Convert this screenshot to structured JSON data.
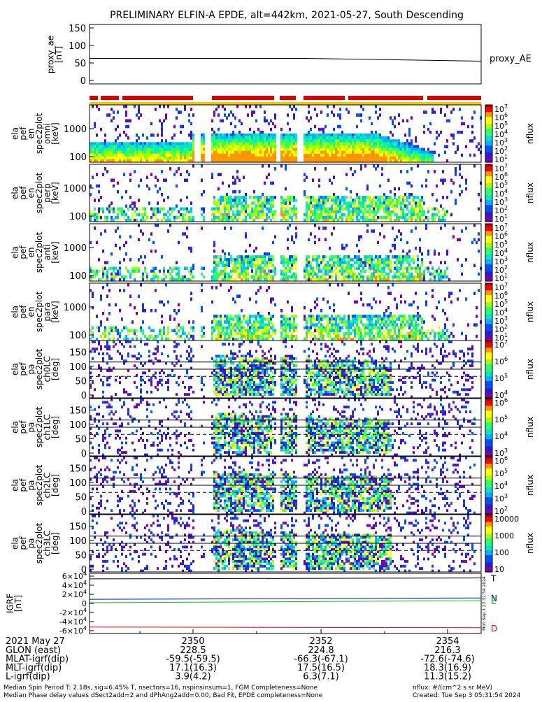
{
  "title": "PRELIMINARY ELFIN-A EPDE, alt=442km, 2021-05-27, South Descending",
  "colors": {
    "jet": [
      "#7a00b4",
      "#2d1ad2",
      "#0050ff",
      "#00b4ff",
      "#00e6c8",
      "#28ff6e",
      "#a0ff00",
      "#ffff00",
      "#ff9600",
      "#ff0000",
      "#b40000"
    ],
    "coverage_bar": "#e00000",
    "yellow_bar": "#f0c800",
    "grf_t": "#000000",
    "grf_n": "#0000ff",
    "grf_e": "#00cc00",
    "grf_d": "#ff0000"
  },
  "chart_data": [
    {
      "type": "line",
      "ylabel": [
        "proxy_ae",
        "[nT]"
      ],
      "yticks": [
        "150",
        "100",
        "50",
        "0"
      ],
      "ylim": [
        0,
        150
      ],
      "series": [
        {
          "name": "proxy_AE",
          "x": [
            0,
            0.55,
            1.0
          ],
          "values": [
            63,
            63,
            55
          ]
        }
      ]
    },
    {
      "type": "heatmap",
      "panels": [
        {
          "ylabel": [
            "ela",
            "pef",
            "en",
            "spec2plot",
            "omni",
            "[keV]"
          ],
          "yticks": [
            "1000",
            "100"
          ],
          "cbar_ticks": [
            "10^7",
            "10^6",
            "10^5",
            "10^4",
            "10^3",
            "10^2",
            "10^1"
          ],
          "cbar_label": "nflux"
        },
        {
          "ylabel": [
            "ela",
            "pef",
            "en",
            "spec2plot",
            "perp",
            "[keV]"
          ],
          "yticks": [
            "1000",
            "100"
          ],
          "cbar_ticks": [
            "10^7",
            "10^6",
            "10^5",
            "10^4",
            "10^3",
            "10^2",
            "10^1"
          ],
          "cbar_label": "nflux"
        },
        {
          "ylabel": [
            "ela",
            "pef",
            "en",
            "spec2plot",
            "anti",
            "[keV]"
          ],
          "yticks": [
            "1000",
            "100"
          ],
          "cbar_ticks": [
            "10^7",
            "10^6",
            "10^5",
            "10^4",
            "10^3",
            "10^2",
            "10^1"
          ],
          "cbar_label": "nflux"
        },
        {
          "ylabel": [
            "ela",
            "pef",
            "en",
            "spec2plot",
            "para",
            "[keV]"
          ],
          "yticks": [
            "1000",
            "100"
          ],
          "cbar_ticks": [
            "10^7",
            "10^6",
            "10^5",
            "10^4",
            "10^3",
            "10^2",
            "10^1"
          ],
          "cbar_label": "nflux"
        },
        {
          "ylabel": [
            "ela",
            "pef",
            "pa",
            "spec2plot",
            "ch0LC",
            "[deg]"
          ],
          "yticks": [
            "150",
            "100",
            "50",
            "0"
          ],
          "cbar_ticks": [
            "10^7",
            "10^6",
            "10^5",
            "10^4"
          ],
          "cbar_label": "nflux"
        },
        {
          "ylabel": [
            "ela",
            "pef",
            "pa",
            "spec2plot",
            "ch1LC",
            "[deg]"
          ],
          "yticks": [
            "150",
            "100",
            "50",
            "0"
          ],
          "cbar_ticks": [
            "10^6",
            "10^5",
            "10^4",
            "10^3"
          ],
          "cbar_label": "nflux"
        },
        {
          "ylabel": [
            "ela",
            "pef",
            "pa",
            "spec2plot",
            "ch2LC",
            "[deg]"
          ],
          "yticks": [
            "150",
            "100",
            "50",
            "0"
          ],
          "cbar_ticks": [
            "10^6",
            "10^5",
            "10^4",
            "10^3",
            "10^2"
          ],
          "cbar_label": "nflux"
        },
        {
          "ylabel": [
            "ela",
            "pef",
            "pa",
            "spec2plot",
            "ch3LC",
            "[deg]"
          ],
          "yticks": [
            "150",
            "100",
            "50",
            "0"
          ],
          "cbar_ticks": [
            "10000",
            "1000",
            "100",
            "10"
          ],
          "cbar_label": "nflux"
        }
      ]
    },
    {
      "type": "line",
      "ylabel": [
        "IGRF",
        "[nT]"
      ],
      "yticks": [
        "6×10^4",
        "4×10^4",
        "2×10^4",
        "0",
        "-2×10^4",
        "-4×10^4",
        "-6×10^4"
      ],
      "ylim": [
        -60000,
        60000
      ],
      "series": [
        {
          "name": "T",
          "x": [
            0,
            1
          ],
          "values": [
            54000,
            56000
          ]
        },
        {
          "name": "N",
          "x": [
            0,
            1
          ],
          "values": [
            9000,
            12000
          ]
        },
        {
          "name": "E",
          "x": [
            0,
            1
          ],
          "values": [
            1500,
            6000
          ]
        },
        {
          "name": "D",
          "x": [
            0,
            1
          ],
          "values": [
            -52000,
            -53500
          ]
        }
      ],
      "side_label": "Mon Sep  3 22:31:54 2024"
    }
  ],
  "footer": {
    "date": "2021 May 27",
    "times": [
      "2350",
      "2352",
      "2354"
    ],
    "rows": [
      {
        "label": "GLON (east)",
        "values": [
          "228.5",
          "224.8",
          "216.3"
        ]
      },
      {
        "label": "MLAT-igrf(dip)",
        "values": [
          "-59.5(-59.5)",
          "-66.3(-67.1)",
          "-72.6(-74.6)"
        ]
      },
      {
        "label": "MLT-igrf(dip)",
        "values": [
          "17.1(16.3)",
          "17.5(16.5)",
          "18.3(16.9)"
        ]
      },
      {
        "label": "L-igrf(dip)",
        "values": [
          "3.9(4.2)",
          "6.3(7.1)",
          "11.3(15.2)"
        ]
      }
    ],
    "note1": "Median Spin Period T: 2.18s, sig=6.45% T, nsectors=16, nspinsinsum=1, FGM Completeness=None",
    "note2": "Median Phase delay values dSect2add=2 and dPhAng2add=0.00, Bad Fit, EPDE completeness=None",
    "units": "nflux: #/(cm^2 s sr MeV)",
    "created": "Created: Tue Sep  3 05:31:54 2024"
  }
}
